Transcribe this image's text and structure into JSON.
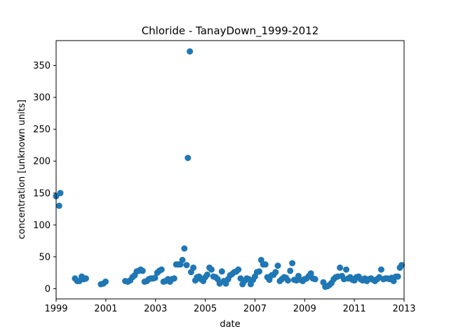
{
  "chart_data": {
    "type": "scatter",
    "title": "Chloride - TanayDown_1999-2012",
    "xlabel": "date",
    "ylabel": "concentration [unknown units]",
    "xlim": [
      1999.0,
      2013.0
    ],
    "ylim": [
      -16,
      389
    ],
    "x_ticks": [
      {
        "value": 1999,
        "label": "1999"
      },
      {
        "value": 2001,
        "label": "2001"
      },
      {
        "value": 2003,
        "label": "2003"
      },
      {
        "value": 2005,
        "label": "2005"
      },
      {
        "value": 2007,
        "label": "2007"
      },
      {
        "value": 2009,
        "label": "2009"
      },
      {
        "value": 2011,
        "label": "2011"
      },
      {
        "value": 2013,
        "label": "2013"
      }
    ],
    "y_ticks": [
      {
        "value": 0,
        "label": "0"
      },
      {
        "value": 50,
        "label": "50"
      },
      {
        "value": 100,
        "label": "100"
      },
      {
        "value": 150,
        "label": "150"
      },
      {
        "value": 200,
        "label": "200"
      },
      {
        "value": 250,
        "label": "250"
      },
      {
        "value": 300,
        "label": "300"
      },
      {
        "value": 350,
        "label": "350"
      }
    ],
    "grid": false,
    "marker_color": "#1f77b4",
    "points": [
      [
        1999.0,
        145
      ],
      [
        1999.12,
        130
      ],
      [
        1999.17,
        150
      ],
      [
        1999.76,
        16
      ],
      [
        1999.85,
        12
      ],
      [
        1999.94,
        12
      ],
      [
        2000.03,
        19
      ],
      [
        2000.12,
        15
      ],
      [
        2000.2,
        16
      ],
      [
        2000.8,
        7
      ],
      [
        2000.9,
        8
      ],
      [
        2000.99,
        11
      ],
      [
        2001.78,
        12
      ],
      [
        2001.88,
        11
      ],
      [
        2001.98,
        13
      ],
      [
        2002.07,
        18
      ],
      [
        2002.16,
        21
      ],
      [
        2002.24,
        27
      ],
      [
        2002.32,
        28
      ],
      [
        2002.4,
        30
      ],
      [
        2002.48,
        28
      ],
      [
        2002.56,
        11
      ],
      [
        2002.65,
        12
      ],
      [
        2002.73,
        15
      ],
      [
        2002.81,
        16
      ],
      [
        2002.9,
        16
      ],
      [
        2002.98,
        17
      ],
      [
        2003.07,
        25
      ],
      [
        2003.15,
        28
      ],
      [
        2003.24,
        30
      ],
      [
        2003.32,
        11
      ],
      [
        2003.41,
        12
      ],
      [
        2003.5,
        15
      ],
      [
        2003.58,
        11
      ],
      [
        2003.66,
        15
      ],
      [
        2003.75,
        16
      ],
      [
        2003.83,
        38
      ],
      [
        2003.91,
        38
      ],
      [
        2004.0,
        38
      ],
      [
        2004.08,
        45
      ],
      [
        2004.16,
        63
      ],
      [
        2004.25,
        37
      ],
      [
        2004.3,
        205
      ],
      [
        2004.38,
        372
      ],
      [
        2004.43,
        26
      ],
      [
        2004.52,
        33
      ],
      [
        2004.6,
        13
      ],
      [
        2004.67,
        18
      ],
      [
        2004.75,
        19
      ],
      [
        2004.83,
        15
      ],
      [
        2004.92,
        12
      ],
      [
        2005.0,
        18
      ],
      [
        2005.08,
        22
      ],
      [
        2005.17,
        33
      ],
      [
        2005.25,
        30
      ],
      [
        2005.33,
        19
      ],
      [
        2005.42,
        18
      ],
      [
        2005.5,
        15
      ],
      [
        2005.58,
        8
      ],
      [
        2005.67,
        27
      ],
      [
        2005.75,
        12
      ],
      [
        2005.83,
        8
      ],
      [
        2005.92,
        15
      ],
      [
        2006.0,
        21
      ],
      [
        2006.08,
        23
      ],
      [
        2006.17,
        26
      ],
      [
        2006.25,
        27
      ],
      [
        2006.33,
        30
      ],
      [
        2006.42,
        16
      ],
      [
        2006.5,
        7
      ],
      [
        2006.58,
        12
      ],
      [
        2006.67,
        16
      ],
      [
        2006.75,
        15
      ],
      [
        2006.83,
        7
      ],
      [
        2006.92,
        14
      ],
      [
        2007.0,
        19
      ],
      [
        2007.08,
        26
      ],
      [
        2007.17,
        27
      ],
      [
        2007.25,
        45
      ],
      [
        2007.33,
        38
      ],
      [
        2007.42,
        38
      ],
      [
        2007.5,
        18
      ],
      [
        2007.58,
        14
      ],
      [
        2007.67,
        21
      ],
      [
        2007.75,
        22
      ],
      [
        2007.83,
        26
      ],
      [
        2007.92,
        36
      ],
      [
        2008.0,
        12
      ],
      [
        2008.08,
        15
      ],
      [
        2008.17,
        18
      ],
      [
        2008.25,
        17
      ],
      [
        2008.33,
        13
      ],
      [
        2008.42,
        28
      ],
      [
        2008.5,
        40
      ],
      [
        2008.58,
        14
      ],
      [
        2008.67,
        13
      ],
      [
        2008.75,
        20
      ],
      [
        2008.83,
        14
      ],
      [
        2008.92,
        12
      ],
      [
        2009.0,
        15
      ],
      [
        2009.08,
        16
      ],
      [
        2009.17,
        20
      ],
      [
        2009.25,
        24
      ],
      [
        2009.33,
        16
      ],
      [
        2009.42,
        15
      ],
      [
        2009.75,
        10
      ],
      [
        2009.83,
        3
      ],
      [
        2009.92,
        4
      ],
      [
        2010.0,
        6
      ],
      [
        2010.08,
        9
      ],
      [
        2010.17,
        15
      ],
      [
        2010.25,
        18
      ],
      [
        2010.33,
        19
      ],
      [
        2010.42,
        33
      ],
      [
        2010.5,
        20
      ],
      [
        2010.58,
        15
      ],
      [
        2010.67,
        30
      ],
      [
        2010.75,
        16
      ],
      [
        2010.83,
        18
      ],
      [
        2010.92,
        14
      ],
      [
        2011.0,
        13
      ],
      [
        2011.08,
        18
      ],
      [
        2011.17,
        19
      ],
      [
        2011.25,
        15
      ],
      [
        2011.33,
        13
      ],
      [
        2011.42,
        16
      ],
      [
        2011.5,
        12
      ],
      [
        2011.58,
        15
      ],
      [
        2011.67,
        16
      ],
      [
        2011.75,
        14
      ],
      [
        2011.83,
        12
      ],
      [
        2011.92,
        15
      ],
      [
        2012.0,
        18
      ],
      [
        2012.08,
        30
      ],
      [
        2012.17,
        15
      ],
      [
        2012.25,
        16
      ],
      [
        2012.33,
        16
      ],
      [
        2012.42,
        15
      ],
      [
        2012.5,
        17
      ],
      [
        2012.58,
        12
      ],
      [
        2012.67,
        19
      ],
      [
        2012.75,
        19
      ],
      [
        2012.83,
        33
      ],
      [
        2012.9,
        37
      ]
    ]
  }
}
